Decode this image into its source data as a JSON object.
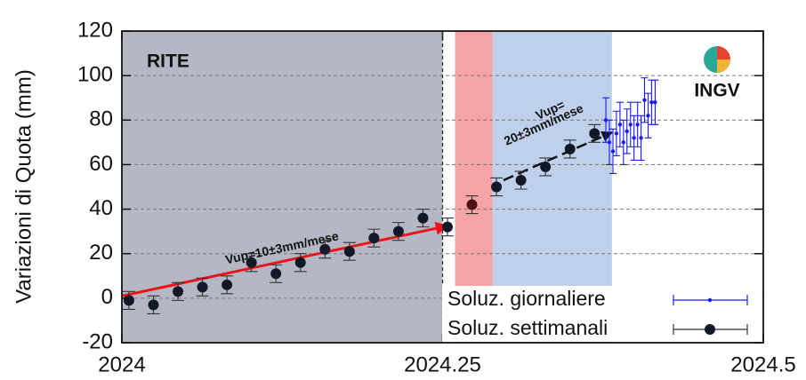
{
  "chart_data": {
    "type": "scatter",
    "ylabel": "Variazioni di Quota (mm)",
    "station": "RITE",
    "logo_text": "INGV",
    "xlim": [
      2024,
      2024.5
    ],
    "xticks": [
      2024,
      2024.25,
      2024.5
    ],
    "ylim": [
      -20,
      120
    ],
    "yticks": [
      -20,
      0,
      20,
      40,
      60,
      80,
      100,
      120
    ],
    "grid": true,
    "spans": [
      {
        "x": [
          2024,
          2024.25
        ],
        "color": "#b5b8c4"
      },
      {
        "x": [
          2024.2597,
          2024.289
        ],
        "color": "#f6a3a6"
      },
      {
        "x": [
          2024.289,
          2024.382
        ],
        "color": "#bfd0ea"
      }
    ],
    "vline": 2024.25,
    "series": [
      {
        "name": "Soluz. giornaliere",
        "color": "#1a1aff",
        "marker_size": 2.2,
        "x": [
          2024.3773,
          2024.38,
          2024.3828,
          2024.3855,
          2024.3883,
          2024.391,
          2024.3937,
          2024.3965,
          2024.3992,
          2024.402,
          2024.4047,
          2024.4074,
          2024.4102,
          2024.4129,
          2024.4157
        ],
        "values": [
          80,
          70,
          66,
          74,
          78,
          70,
          75,
          78,
          72,
          78,
          72,
          89,
          82,
          88,
          88
        ],
        "errors": [
          10,
          10,
          10,
          10,
          10,
          10,
          10,
          10,
          10,
          10,
          10,
          10,
          10,
          10,
          10
        ]
      },
      {
        "name": "Soluz. settimanali",
        "color": "#111827",
        "marker_size": 6,
        "x": [
          2024.0055,
          2024.0246,
          2024.0437,
          2024.0628,
          2024.0819,
          2024.101,
          2024.1201,
          2024.1392,
          2024.1583,
          2024.1774,
          2024.1965,
          2024.2156,
          2024.2347,
          2024.2538,
          2024.2729,
          2024.292,
          2024.3111,
          2024.3302,
          2024.3493,
          2024.3684
        ],
        "values": [
          -1,
          -3,
          3,
          5,
          6,
          16,
          11,
          16,
          22,
          21,
          27,
          30,
          36,
          32,
          42,
          50,
          53,
          59,
          67,
          74
        ],
        "errors": [
          4,
          4,
          4,
          4,
          4,
          4,
          4,
          4,
          4,
          4,
          4,
          4,
          4,
          4,
          4,
          4,
          4,
          4,
          4,
          4
        ],
        "highlight": {
          "index": 14,
          "color": "#4a1414"
        }
      }
    ],
    "arrows": [
      {
        "x": [
          2024,
          2024.254
        ],
        "y": [
          1,
          32.5
        ],
        "color": "#e8161b",
        "dashed": false,
        "label": [
          "Vup=10±3mm/mese"
        ]
      },
      {
        "x": [
          2024.2975,
          2024.382
        ],
        "y": [
          53,
          74.5
        ],
        "color": "#111111",
        "dashed": true,
        "label": [
          "Vup=",
          "20±3mm/mese"
        ]
      }
    ]
  }
}
